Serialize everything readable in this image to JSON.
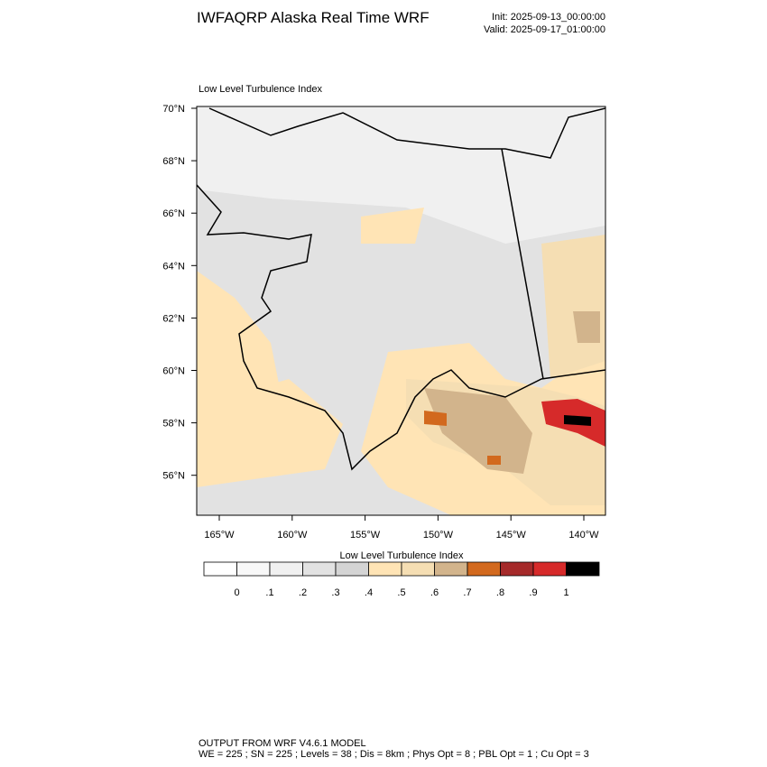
{
  "header": {
    "title": "IWFAQRP Alaska Real Time WRF",
    "init": "Init: 2025-09-13_00:00:00",
    "valid": "Valid: 2025-09-17_01:00:00"
  },
  "map": {
    "title": "Low Level Turbulence Index",
    "lat_labels": [
      "70°N",
      "68°N",
      "66°N",
      "64°N",
      "62°N",
      "60°N",
      "58°N",
      "56°N"
    ],
    "lon_labels": [
      "165°W",
      "160°W",
      "155°W",
      "150°W",
      "145°W",
      "140°W"
    ]
  },
  "colorbar": {
    "title": "Low Level Turbulence Index",
    "colors": [
      "#ffffff",
      "#f8f8f8",
      "#f0f0f0",
      "#e2e2e2",
      "#d4d4d4",
      "#ffe4b5",
      "#f5deb3",
      "#d2b48c",
      "#d2691e",
      "#a52a2a",
      "#d62a2a",
      "#000000"
    ],
    "labels": [
      "0",
      ".1",
      ".2",
      ".3",
      ".4",
      ".5",
      ".6",
      ".7",
      ".8",
      ".9",
      "1"
    ]
  },
  "footer": {
    "line1": "OUTPUT FROM WRF V4.6.1 MODEL",
    "line2": "WE = 225 ; SN = 225 ; Levels = 38 ; Dis = 8km ; Phys Opt = 8 ; PBL Opt = 1 ; Cu Opt = 3"
  }
}
